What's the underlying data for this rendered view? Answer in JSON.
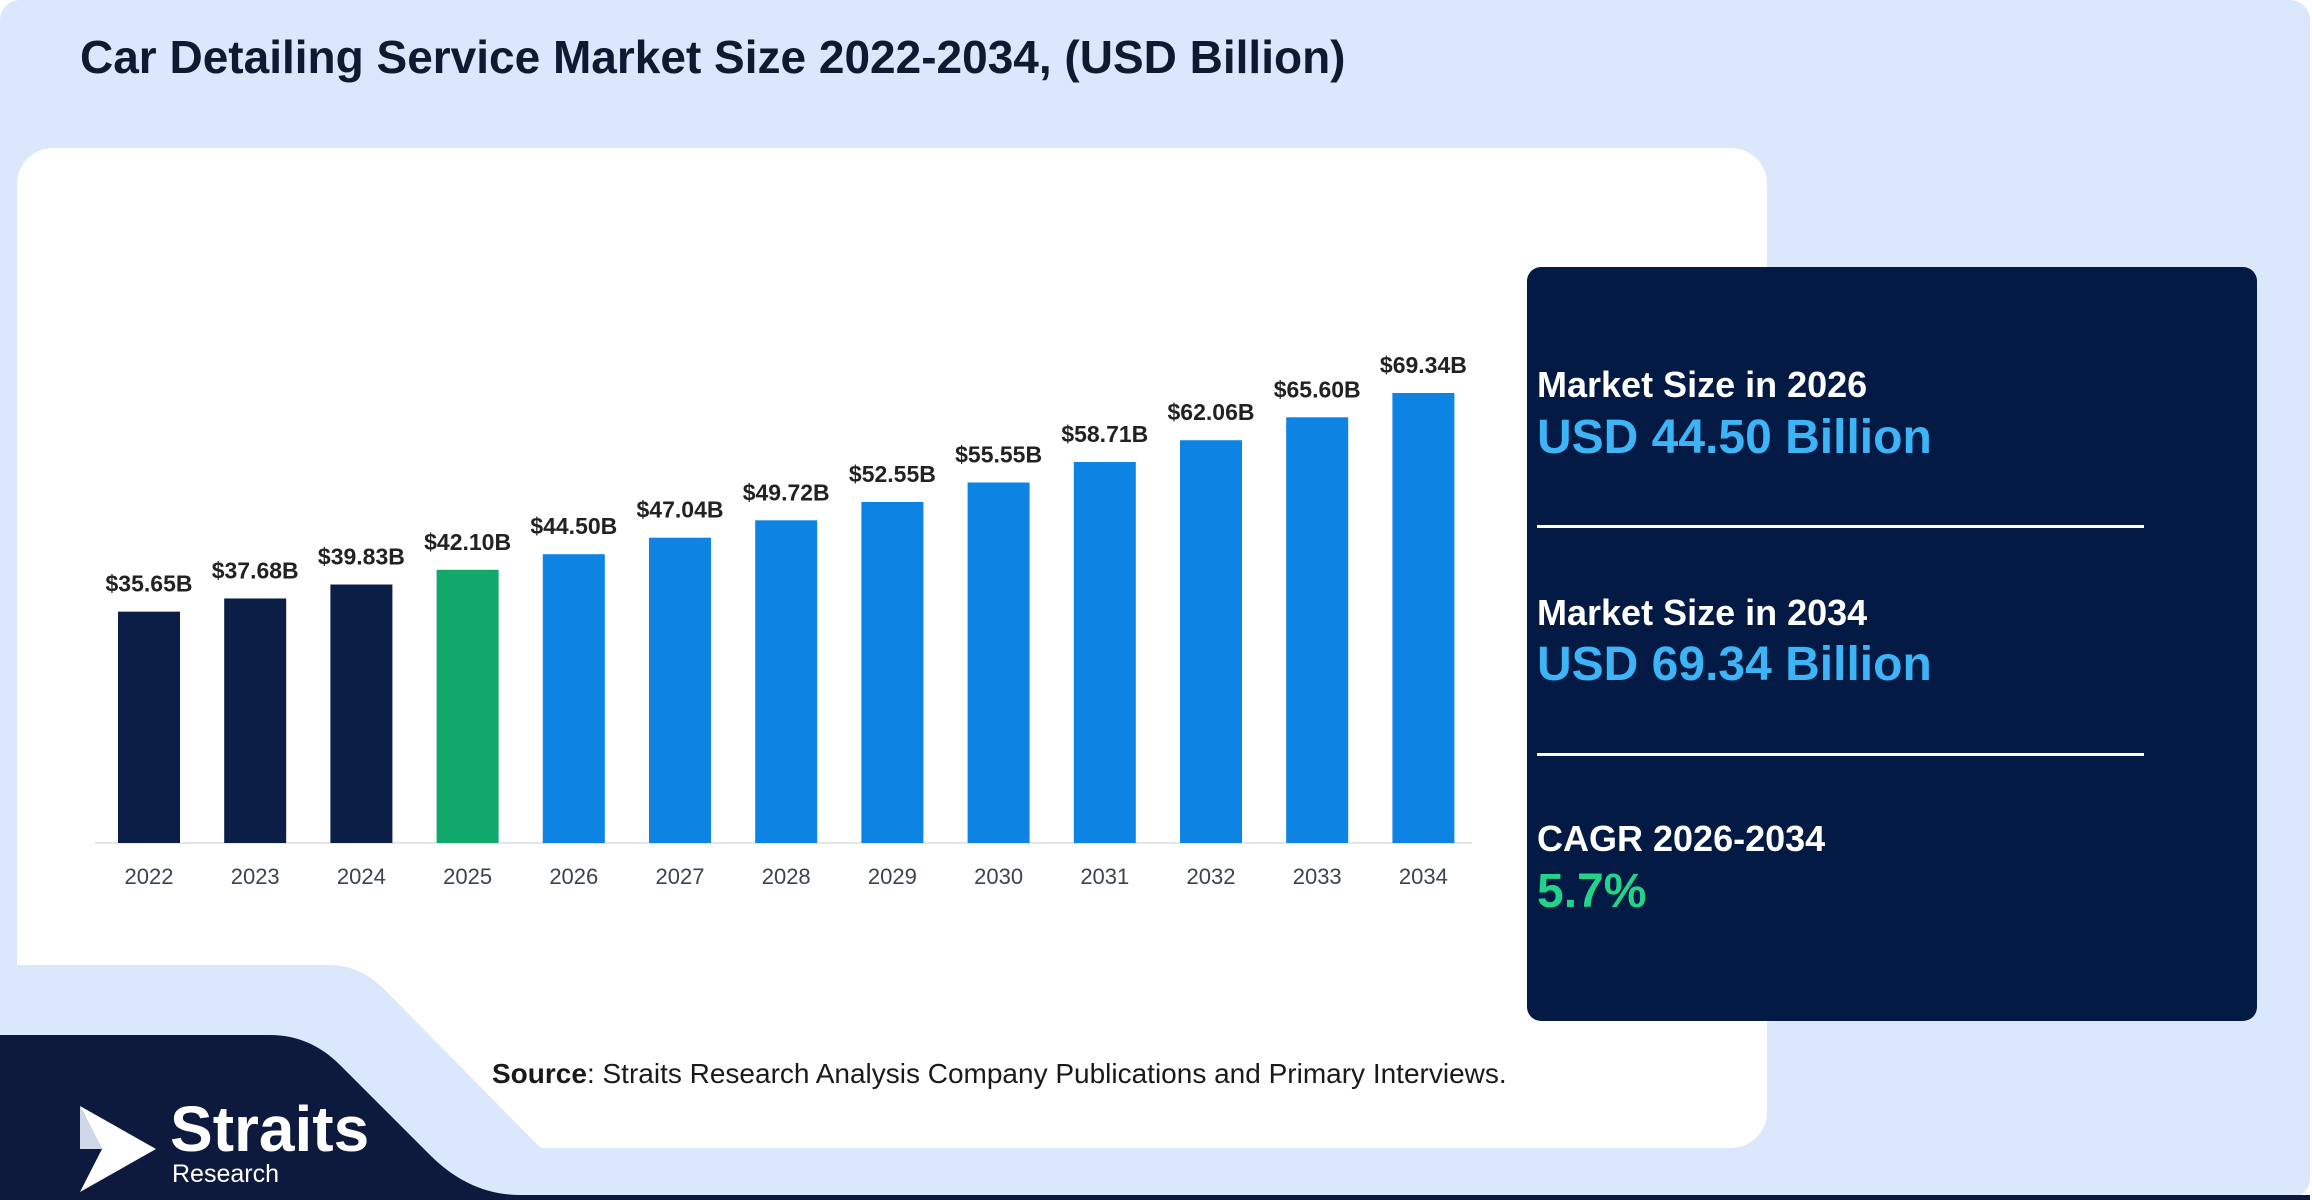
{
  "title": "Car Detailing Service Market Size 2022-2034, (USD Billion)",
  "colors": {
    "historic": "#0b1e45",
    "base_year": "#10a86b",
    "forecast": "#0d84e4",
    "panel_bg": "#031a44",
    "value_blue": "#3cb4f5",
    "value_green": "#21d48a"
  },
  "chart_data": {
    "type": "bar",
    "categories": [
      "2022",
      "2023",
      "2024",
      "2025",
      "2026",
      "2027",
      "2028",
      "2029",
      "2030",
      "2031",
      "2032",
      "2033",
      "2034"
    ],
    "values": [
      35.65,
      37.68,
      39.83,
      42.1,
      44.5,
      47.04,
      49.72,
      52.55,
      55.55,
      58.71,
      62.06,
      65.6,
      69.34
    ],
    "data_labels": [
      "$35.65B",
      "$37.68B",
      "$39.83B",
      "$42.10B",
      "$44.50B",
      "$47.04B",
      "$49.72B",
      "$52.55B",
      "$55.55B",
      "$58.71B",
      "$62.06B",
      "$65.60B",
      "$69.34B"
    ],
    "bar_color_groups": [
      "historic",
      "historic",
      "historic",
      "base_year",
      "forecast",
      "forecast",
      "forecast",
      "forecast",
      "forecast",
      "forecast",
      "forecast",
      "forecast",
      "forecast"
    ],
    "xlabel": "",
    "ylabel": "",
    "grid": false,
    "legend": false
  },
  "stats": [
    {
      "label": "Market Size in 2026",
      "value": "USD 44.50 Billion",
      "color": "value_blue"
    },
    {
      "label": "Market Size in 2034",
      "value": "USD 69.34 Billion",
      "color": "value_blue"
    },
    {
      "label": "CAGR 2026-2034",
      "value": "5.7%",
      "color": "value_green"
    }
  ],
  "source": {
    "label": "Source",
    "text": ": Straits Research Analysis Company Publications and Primary Interviews."
  },
  "logo": {
    "word": "Straits",
    "sub": "Research",
    "icon": "straits-arrow-icon"
  }
}
